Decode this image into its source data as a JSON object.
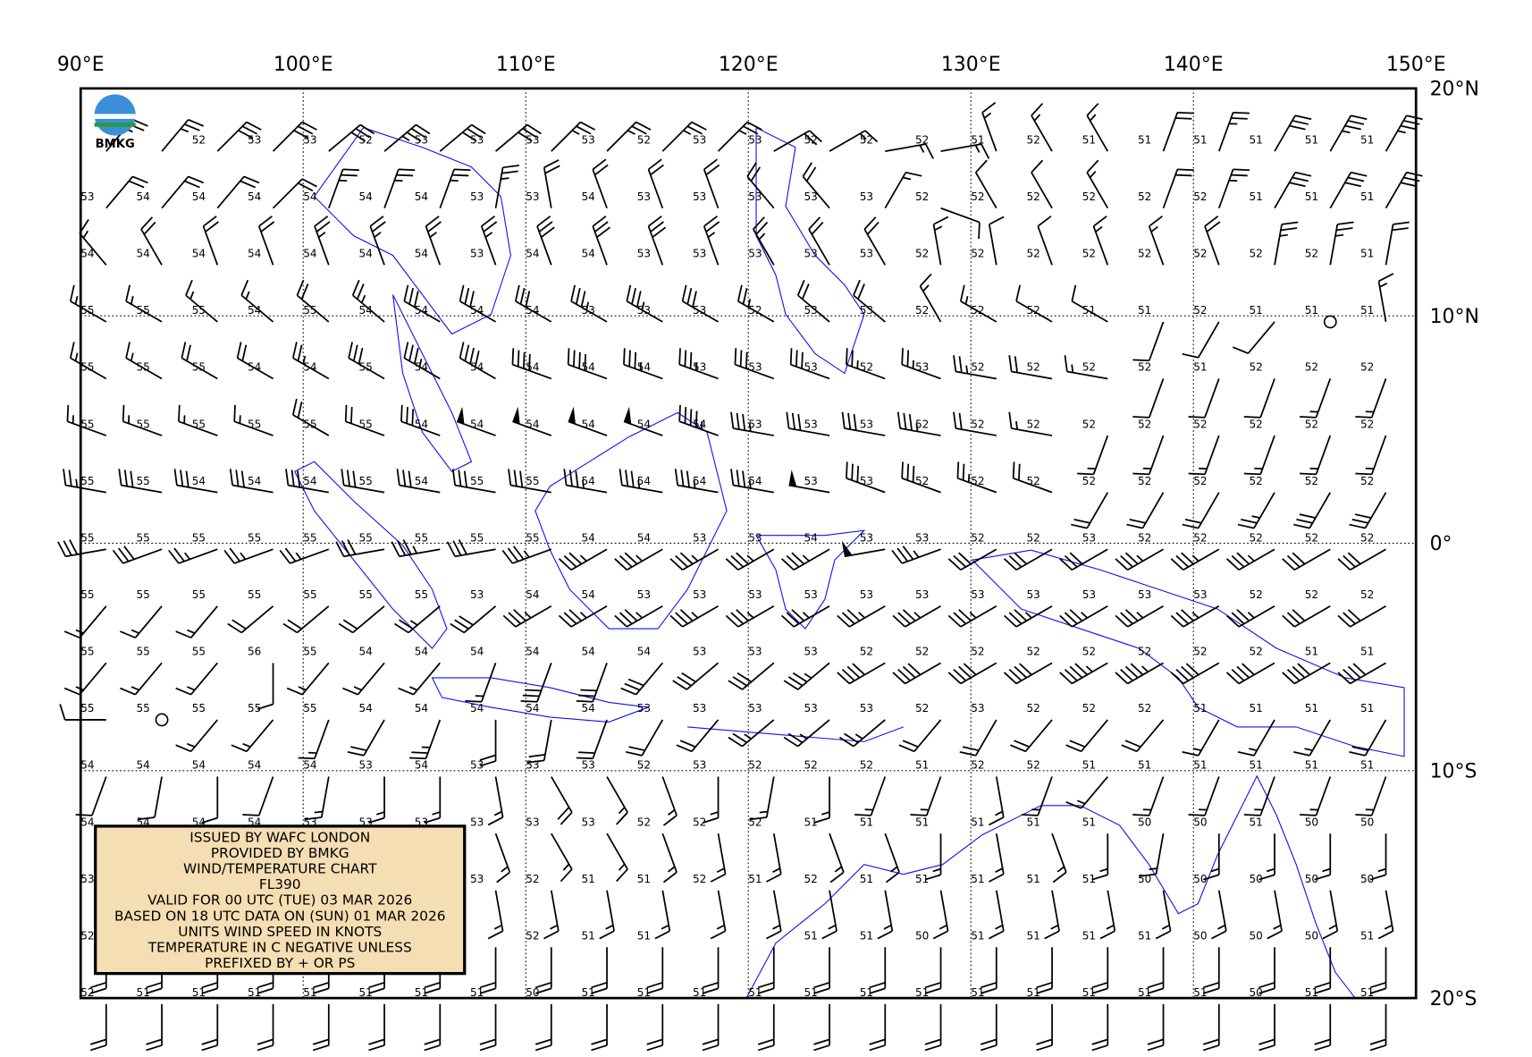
{
  "map": {
    "lon_labels": [
      "90°E",
      "100°E",
      "110°E",
      "120°E",
      "130°E",
      "140°E",
      "150°E"
    ],
    "lat_labels": [
      "20°N",
      "10°N",
      "0°",
      "10°S",
      "20°S"
    ],
    "logo_text": "BMKG",
    "info_box": [
      "ISSUED BY WAFC LONDON",
      "PROVIDED BY BMKG",
      "WIND/TEMPERATURE CHART",
      "FL390",
      "VALID FOR 00 UTC (TUE) 03 MAR 2026",
      "BASED ON 18 UTC DATA ON (SUN) 01 MAR 2026",
      "UNITS WIND SPEED IN KNOTS",
      "TEMPERATURE IN C NEGATIVE UNLESS",
      "PREFIXED BY + OR PS"
    ],
    "temperatures": [
      [
        null,
        null,
        52,
        53,
        53,
        52,
        53,
        53,
        53,
        53,
        52,
        53,
        53,
        52,
        52,
        52,
        51,
        52,
        51,
        51,
        51,
        51,
        51,
        51
      ],
      [
        53,
        54,
        54,
        54,
        54,
        54,
        54,
        53,
        53,
        54,
        53,
        53,
        53,
        53,
        53,
        52,
        52,
        52,
        52,
        52,
        52,
        51,
        51,
        51
      ],
      [
        54,
        54,
        54,
        54,
        54,
        54,
        54,
        53,
        54,
        54,
        53,
        53,
        53,
        53,
        53,
        52,
        52,
        52,
        52,
        52,
        52,
        52,
        52,
        51
      ],
      [
        55,
        55,
        55,
        54,
        55,
        54,
        54,
        54,
        54,
        53,
        53,
        53,
        52,
        53,
        53,
        52,
        52,
        52,
        51,
        51,
        52,
        51,
        51,
        51
      ],
      [
        55,
        55,
        55,
        54,
        54,
        55,
        54,
        54,
        54,
        54,
        54,
        53,
        53,
        53,
        52,
        53,
        52,
        52,
        52,
        52,
        51,
        52,
        52,
        52
      ],
      [
        55,
        55,
        55,
        55,
        55,
        55,
        54,
        54,
        54,
        54,
        54,
        54,
        53,
        53,
        53,
        52,
        52,
        52,
        52,
        52,
        52,
        52,
        52,
        52
      ],
      [
        55,
        55,
        54,
        54,
        54,
        55,
        54,
        55,
        55,
        54,
        54,
        54,
        54,
        53,
        53,
        52,
        52,
        52,
        52,
        52,
        52,
        52,
        52,
        52
      ],
      [
        55,
        55,
        55,
        55,
        55,
        55,
        55,
        55,
        55,
        54,
        54,
        53,
        53,
        54,
        53,
        53,
        52,
        52,
        53,
        52,
        52,
        52,
        52,
        52
      ],
      [
        55,
        55,
        55,
        55,
        55,
        55,
        55,
        53,
        54,
        54,
        53,
        53,
        53,
        53,
        53,
        53,
        53,
        53,
        53,
        53,
        53,
        52,
        52,
        52
      ],
      [
        55,
        55,
        55,
        56,
        55,
        54,
        54,
        54,
        54,
        54,
        54,
        53,
        53,
        53,
        52,
        52,
        52,
        52,
        52,
        52,
        52,
        52,
        51,
        51
      ],
      [
        55,
        55,
        55,
        55,
        55,
        54,
        54,
        54,
        54,
        54,
        53,
        53,
        53,
        53,
        53,
        52,
        53,
        52,
        52,
        52,
        51,
        51,
        51,
        51
      ],
      [
        54,
        54,
        54,
        54,
        54,
        53,
        54,
        53,
        53,
        53,
        52,
        53,
        52,
        52,
        52,
        51,
        52,
        52,
        51,
        51,
        51,
        51,
        51,
        51
      ],
      [
        54,
        54,
        54,
        54,
        53,
        53,
        53,
        53,
        53,
        53,
        52,
        52,
        52,
        51,
        51,
        51,
        51,
        51,
        51,
        50,
        50,
        51,
        50,
        50
      ],
      [
        53,
        null,
        null,
        null,
        null,
        null,
        null,
        53,
        52,
        51,
        51,
        52,
        51,
        52,
        51,
        51,
        51,
        51,
        51,
        50,
        50,
        50,
        50,
        50
      ],
      [
        52,
        null,
        null,
        null,
        null,
        null,
        null,
        null,
        52,
        51,
        51,
        null,
        null,
        51,
        51,
        50,
        51,
        51,
        51,
        51,
        50,
        50,
        50,
        51
      ],
      [
        52,
        51,
        51,
        51,
        51,
        51,
        51,
        51,
        50,
        51,
        51,
        51,
        51,
        51,
        51,
        51,
        51,
        51,
        51,
        51,
        51,
        50,
        51,
        51
      ]
    ],
    "wind_direction": [
      [
        40,
        40,
        45,
        45,
        50,
        50,
        50,
        50,
        45,
        45,
        45,
        45,
        60,
        60,
        80,
        80,
        340,
        330,
        330,
        20,
        20,
        30,
        30,
        30
      ],
      [
        40,
        40,
        40,
        45,
        20,
        20,
        20,
        10,
        350,
        340,
        340,
        340,
        320,
        320,
        30,
        110,
        330,
        330,
        330,
        20,
        20,
        30,
        30,
        30
      ],
      [
        320,
        330,
        340,
        340,
        340,
        340,
        340,
        340,
        340,
        340,
        340,
        340,
        330,
        330,
        330,
        350,
        350,
        340,
        340,
        340,
        340,
        10,
        10,
        10
      ],
      [
        300,
        300,
        310,
        310,
        310,
        310,
        300,
        300,
        300,
        300,
        300,
        300,
        300,
        310,
        310,
        330,
        300,
        300,
        300,
        200,
        210,
        220,
        0,
        350
      ],
      [
        300,
        300,
        300,
        300,
        300,
        300,
        300,
        300,
        290,
        290,
        290,
        290,
        290,
        290,
        290,
        290,
        280,
        280,
        280,
        200,
        200,
        200,
        200,
        200
      ],
      [
        290,
        290,
        290,
        290,
        300,
        290,
        290,
        290,
        290,
        290,
        290,
        290,
        280,
        280,
        280,
        280,
        280,
        280,
        200,
        200,
        200,
        200,
        200,
        200
      ],
      [
        280,
        280,
        280,
        280,
        280,
        280,
        280,
        280,
        280,
        280,
        280,
        280,
        280,
        280,
        290,
        290,
        290,
        290,
        210,
        210,
        210,
        210,
        210,
        210
      ],
      [
        260,
        250,
        250,
        250,
        250,
        260,
        260,
        260,
        250,
        240,
        240,
        240,
        240,
        240,
        260,
        250,
        240,
        240,
        240,
        240,
        240,
        240,
        240,
        240
      ],
      [
        220,
        220,
        220,
        230,
        230,
        230,
        230,
        230,
        240,
        240,
        240,
        240,
        240,
        240,
        240,
        240,
        240,
        240,
        240,
        240,
        240,
        240,
        240,
        240
      ],
      [
        220,
        220,
        220,
        180,
        220,
        220,
        220,
        200,
        200,
        200,
        220,
        230,
        230,
        230,
        240,
        240,
        240,
        240,
        240,
        240,
        240,
        240,
        240,
        240
      ],
      [
        270,
        200,
        220,
        220,
        200,
        210,
        200,
        180,
        190,
        200,
        210,
        220,
        230,
        230,
        230,
        220,
        210,
        220,
        220,
        220,
        210,
        210,
        210,
        210
      ],
      [
        200,
        190,
        180,
        200,
        190,
        180,
        180,
        170,
        150,
        150,
        160,
        180,
        190,
        180,
        200,
        200,
        170,
        200,
        220,
        200,
        200,
        200,
        200,
        200
      ],
      [
        170,
        170,
        170,
        160,
        150,
        160,
        170,
        160,
        150,
        150,
        160,
        170,
        170,
        160,
        160,
        180,
        170,
        160,
        180,
        190,
        180,
        180,
        180,
        180
      ],
      [
        170,
        170,
        170,
        170,
        170,
        170,
        170,
        170,
        170,
        170,
        170,
        170,
        170,
        170,
        170,
        170,
        170,
        170,
        170,
        170,
        170,
        170,
        170,
        170
      ],
      [
        180,
        180,
        180,
        180,
        180,
        180,
        180,
        180,
        180,
        180,
        180,
        180,
        180,
        180,
        180,
        180,
        180,
        180,
        180,
        180,
        180,
        180,
        180,
        180
      ],
      [
        180,
        180,
        180,
        180,
        180,
        180,
        180,
        180,
        180,
        180,
        180,
        180,
        180,
        180,
        180,
        180,
        180,
        180,
        180,
        180,
        180,
        180,
        180,
        180
      ]
    ],
    "wind_speed": [
      [
        25,
        25,
        30,
        30,
        30,
        35,
        30,
        30,
        25,
        25,
        25,
        25,
        20,
        15,
        15,
        15,
        15,
        15,
        15,
        20,
        25,
        30,
        35,
        35
      ],
      [
        20,
        20,
        20,
        20,
        25,
        25,
        25,
        25,
        20,
        20,
        20,
        20,
        20,
        20,
        15,
        10,
        10,
        10,
        15,
        20,
        25,
        30,
        30,
        30
      ],
      [
        15,
        20,
        20,
        20,
        25,
        25,
        25,
        25,
        30,
        30,
        30,
        25,
        25,
        20,
        20,
        15,
        10,
        10,
        15,
        15,
        20,
        25,
        25,
        20
      ],
      [
        15,
        15,
        15,
        15,
        20,
        25,
        30,
        30,
        30,
        35,
        35,
        30,
        25,
        20,
        20,
        15,
        15,
        10,
        10,
        10,
        10,
        10,
        0,
        15
      ],
      [
        15,
        15,
        20,
        20,
        25,
        30,
        35,
        40,
        40,
        40,
        35,
        35,
        30,
        30,
        25,
        25,
        25,
        20,
        15,
        10,
        10,
        10,
        15,
        15
      ],
      [
        15,
        15,
        15,
        15,
        20,
        20,
        30,
        50,
        50,
        50,
        50,
        45,
        35,
        30,
        30,
        35,
        20,
        15,
        15,
        15,
        15,
        15,
        15,
        15
      ],
      [
        25,
        30,
        30,
        30,
        30,
        30,
        30,
        30,
        30,
        35,
        35,
        35,
        35,
        50,
        30,
        30,
        25,
        20,
        20,
        20,
        20,
        25,
        30,
        30
      ],
      [
        30,
        30,
        25,
        25,
        25,
        30,
        35,
        30,
        35,
        35,
        35,
        35,
        35,
        35,
        50,
        35,
        30,
        30,
        30,
        35,
        35,
        35,
        30,
        30
      ],
      [
        15,
        15,
        15,
        20,
        20,
        20,
        25,
        30,
        35,
        35,
        35,
        35,
        35,
        35,
        35,
        35,
        35,
        35,
        35,
        35,
        35,
        35,
        30,
        30
      ],
      [
        15,
        15,
        15,
        10,
        15,
        15,
        15,
        15,
        30,
        30,
        30,
        30,
        30,
        35,
        40,
        40,
        40,
        40,
        45,
        45,
        40,
        40,
        40,
        40
      ],
      [
        10,
        0,
        15,
        15,
        15,
        20,
        25,
        20,
        20,
        20,
        20,
        20,
        25,
        25,
        25,
        20,
        20,
        20,
        20,
        20,
        15,
        15,
        15,
        20
      ],
      [
        10,
        10,
        10,
        10,
        15,
        15,
        15,
        15,
        20,
        15,
        15,
        15,
        15,
        15,
        15,
        15,
        15,
        15,
        15,
        15,
        15,
        15,
        15,
        15
      ],
      [
        15,
        15,
        15,
        15,
        15,
        15,
        15,
        15,
        15,
        15,
        15,
        15,
        15,
        15,
        15,
        15,
        15,
        15,
        15,
        15,
        15,
        15,
        15,
        15
      ],
      [
        15,
        15,
        15,
        15,
        15,
        15,
        15,
        15,
        15,
        15,
        15,
        15,
        15,
        15,
        15,
        15,
        15,
        15,
        15,
        15,
        15,
        15,
        15,
        15
      ],
      [
        20,
        20,
        20,
        20,
        20,
        20,
        20,
        20,
        20,
        20,
        20,
        20,
        20,
        20,
        20,
        20,
        20,
        20,
        20,
        20,
        20,
        20,
        20,
        20
      ],
      [
        20,
        20,
        20,
        20,
        20,
        20,
        20,
        20,
        20,
        20,
        20,
        20,
        20,
        20,
        20,
        20,
        20,
        20,
        20,
        20,
        20,
        20,
        20,
        20
      ]
    ]
  }
}
